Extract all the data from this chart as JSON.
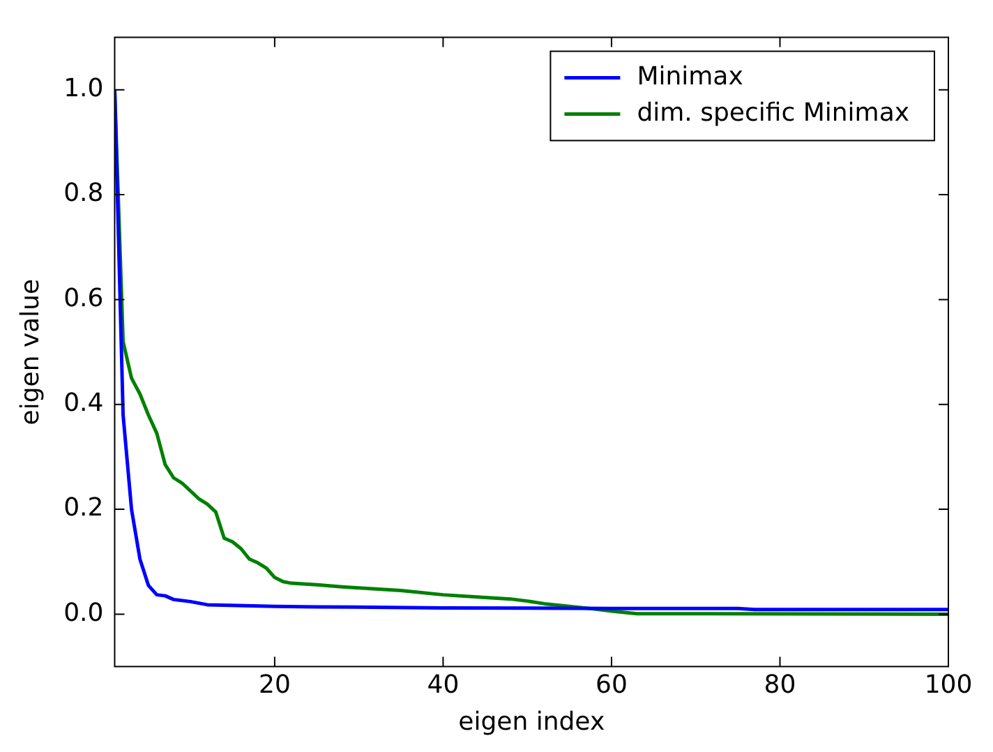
{
  "chart_data": {
    "type": "line",
    "xlabel": "eigen index",
    "ylabel": "eigen value",
    "xlim": [
      1,
      100
    ],
    "xticks": [
      20,
      40,
      60,
      80,
      100
    ],
    "ylim": [
      -0.1,
      1.1
    ],
    "yticks": [
      {
        "value": 0,
        "label": "0.0"
      },
      {
        "value": 0.2,
        "label": "0.2"
      },
      {
        "value": 0.4,
        "label": "0.4"
      },
      {
        "value": 0.6,
        "label": "0.6"
      },
      {
        "value": 0.8,
        "label": "0.8"
      },
      {
        "value": 1,
        "label": "1.0"
      }
    ],
    "grid": false,
    "legend": "top right",
    "marker": "none",
    "line_style": "solid",
    "series": [
      {
        "name": "Minimax",
        "color": "#0000ff",
        "x": [
          1,
          2,
          3,
          4,
          5,
          6,
          7,
          8,
          10,
          12,
          20,
          25,
          40,
          60,
          75,
          77,
          100
        ],
        "values": [
          1.0,
          0.38,
          0.2,
          0.105,
          0.055,
          0.037,
          0.035,
          0.028,
          0.024,
          0.018,
          0.015,
          0.014,
          0.012,
          0.011,
          0.011,
          0.009,
          0.009
        ]
      },
      {
        "name": "dim. specific Minimax",
        "color": "#008000",
        "x": [
          1,
          2,
          3,
          4,
          5,
          6,
          7,
          8,
          9,
          10,
          11,
          12,
          13,
          14,
          15,
          16,
          17,
          18,
          19,
          20,
          21,
          22,
          25,
          28,
          30,
          35,
          40,
          45,
          48,
          50,
          52,
          55,
          58,
          60,
          63,
          100
        ],
        "values": [
          1.0,
          0.52,
          0.45,
          0.42,
          0.38,
          0.345,
          0.285,
          0.26,
          0.25,
          0.235,
          0.22,
          0.21,
          0.195,
          0.145,
          0.138,
          0.125,
          0.105,
          0.098,
          0.088,
          0.07,
          0.062,
          0.059,
          0.056,
          0.052,
          0.05,
          0.045,
          0.037,
          0.032,
          0.029,
          0.025,
          0.02,
          0.015,
          0.01,
          0.006,
          0.001,
          0.0
        ]
      }
    ]
  }
}
